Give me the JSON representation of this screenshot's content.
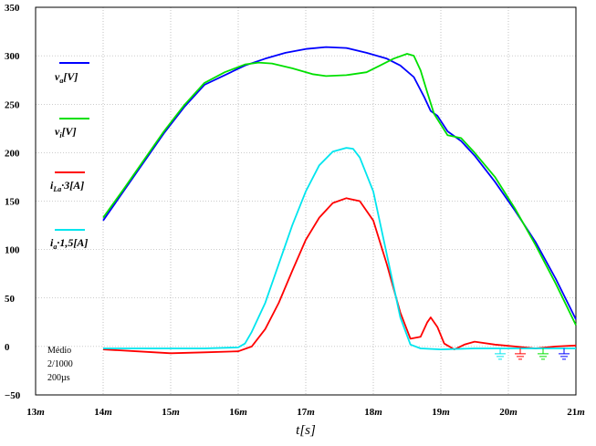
{
  "chart_data": {
    "type": "line",
    "title": "",
    "xlabel": "t[s]",
    "ylabel": "",
    "xlim": [
      13,
      21
    ],
    "ylim": [
      -50,
      350
    ],
    "x_ticks": [
      "13m",
      "14m",
      "15m",
      "16m",
      "17m",
      "18m",
      "19m",
      "20m",
      "21m"
    ],
    "y_ticks": [
      "350",
      "300",
      "250",
      "200",
      "150",
      "100",
      "50",
      "0",
      "−50"
    ],
    "grid": true,
    "legend_position": "left",
    "info_lines": [
      "Médio",
      "2/1000",
      "200µs"
    ],
    "series": [
      {
        "name": "v_a[V]",
        "color": "#0000ff",
        "x": [
          14.0,
          14.3,
          14.6,
          14.9,
          15.2,
          15.5,
          15.8,
          16.1,
          16.4,
          16.7,
          17.0,
          17.3,
          17.6,
          17.9,
          18.2,
          18.4,
          18.6,
          18.75,
          18.85,
          18.95,
          19.1,
          19.3,
          19.5,
          19.8,
          20.1,
          20.4,
          20.7,
          21.0
        ],
        "y": [
          130,
          160,
          190,
          220,
          247,
          270,
          280,
          290,
          297,
          303,
          307,
          309,
          308,
          303,
          297,
          290,
          278,
          258,
          243,
          238,
          222,
          212,
          197,
          170,
          140,
          108,
          70,
          28
        ]
      },
      {
        "name": "v_i[V]",
        "color": "#00e000",
        "x": [
          14.0,
          14.3,
          14.6,
          14.9,
          15.2,
          15.5,
          15.8,
          16.1,
          16.3,
          16.5,
          16.8,
          17.1,
          17.3,
          17.6,
          17.9,
          18.1,
          18.3,
          18.5,
          18.6,
          18.7,
          18.8,
          18.9,
          19.1,
          19.3,
          19.5,
          19.8,
          20.1,
          20.4,
          20.7,
          21.0
        ],
        "y": [
          133,
          162,
          192,
          222,
          249,
          272,
          283,
          291,
          293,
          292,
          287,
          281,
          279,
          280,
          283,
          290,
          297,
          302,
          300,
          285,
          262,
          240,
          218,
          215,
          200,
          175,
          142,
          105,
          65,
          22
        ]
      },
      {
        "name": "i_La·3[A]",
        "color": "#ff0000",
        "x": [
          14.0,
          14.5,
          15.0,
          15.5,
          16.0,
          16.2,
          16.4,
          16.6,
          16.8,
          17.0,
          17.2,
          17.4,
          17.6,
          17.8,
          18.0,
          18.2,
          18.4,
          18.55,
          18.7,
          18.8,
          18.85,
          18.95,
          19.05,
          19.2,
          19.35,
          19.5,
          19.8,
          20.1,
          20.4,
          20.7,
          21.0
        ],
        "y": [
          -3,
          -5,
          -7,
          -6,
          -5,
          0,
          18,
          45,
          78,
          110,
          133,
          148,
          153,
          150,
          130,
          85,
          35,
          8,
          10,
          25,
          30,
          20,
          3,
          -3,
          2,
          5,
          2,
          0,
          -2,
          0,
          1
        ]
      },
      {
        "name": "i_a·1,5[A]",
        "color": "#00e5ee",
        "x": [
          14.0,
          14.5,
          15.0,
          15.5,
          16.0,
          16.1,
          16.2,
          16.4,
          16.6,
          16.8,
          17.0,
          17.2,
          17.4,
          17.6,
          17.7,
          17.8,
          18.0,
          18.2,
          18.4,
          18.55,
          18.7,
          19.0,
          19.5,
          20.0,
          20.5,
          21.0
        ],
        "y": [
          -2,
          -2,
          -2,
          -2,
          -1,
          3,
          15,
          45,
          85,
          125,
          160,
          187,
          201,
          205,
          204,
          195,
          160,
          95,
          30,
          2,
          -2,
          -3,
          -2,
          -2,
          -2,
          -2
        ]
      }
    ],
    "legend": [
      {
        "series": 0,
        "main": "v",
        "sub": "a",
        "rest": "[V]"
      },
      {
        "series": 1,
        "main": "v",
        "sub": "i",
        "rest": "[V]"
      },
      {
        "series": 2,
        "main": "i",
        "sub": "La",
        "rest": "·3[A]"
      },
      {
        "series": 3,
        "main": "i",
        "sub": "a",
        "rest": "·1,5[A]"
      }
    ]
  }
}
